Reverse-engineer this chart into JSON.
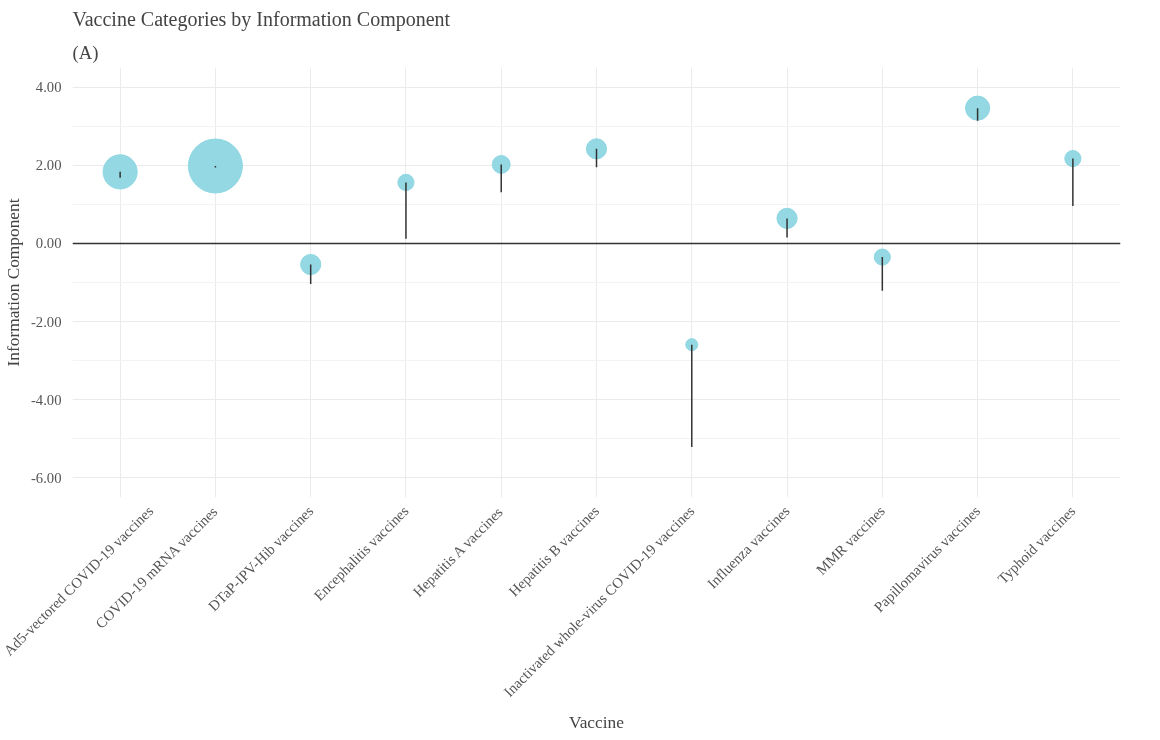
{
  "chart_data": {
    "type": "bubble",
    "title": "Vaccine Categories by Information Component",
    "xlabel": "Vaccine",
    "ylabel": "Information Component",
    "annotations": [
      "(A)"
    ],
    "categories": [
      "Ad5-vectored COVID-19 vaccines",
      "COVID-19 mRNA vaccines",
      "DTaP-IPV-Hib vaccines",
      "Encephalitis vaccines",
      "Hepatitis A vaccines",
      "Hepatitis B vaccines",
      "Inactivated whole-virus COVID-19 vaccines",
      "Influenza vaccines",
      "MMR vaccines",
      "Papillomavirus vaccines",
      "Typhoid vaccines"
    ],
    "series": [
      {
        "color": "#8dd6e2",
        "values": [
          1.83,
          1.98,
          -0.54,
          1.56,
          2.02,
          2.42,
          -2.59,
          0.64,
          -0.35,
          3.46,
          2.17
        ],
        "sizes": [
          0.4,
          1,
          0.14,
          0.09,
          0.11,
          0.14,
          0.05,
          0.14,
          0.09,
          0.2,
          0.09
        ],
        "errors": [
          [
            1.68,
            1.83
          ],
          [
            1.94,
            1.98
          ],
          [
            -1.04,
            -0.54
          ],
          [
            0.12,
            1.56
          ],
          [
            1.31,
            2.02
          ],
          [
            1.95,
            2.42
          ],
          [
            -5.21,
            -2.59
          ],
          [
            0.15,
            0.64
          ],
          [
            -1.21,
            -0.35
          ],
          [
            3.14,
            3.46
          ],
          [
            0.96,
            2.17
          ]
        ]
      }
    ],
    "ylim": [
      -6.5,
      4.5
    ],
    "yticks": [
      {
        "value": -6,
        "label": "-6.00"
      },
      {
        "value": -4,
        "label": "-4.00"
      },
      {
        "value": -2,
        "label": "-2.00"
      },
      {
        "value": 0,
        "label": "0.00"
      },
      {
        "value": 2,
        "label": "2.00"
      },
      {
        "value": 4,
        "label": "4.00"
      }
    ],
    "ref_lines": [
      {
        "axis": "y",
        "value": 0,
        "color": "#333333"
      }
    ],
    "grid": true
  }
}
